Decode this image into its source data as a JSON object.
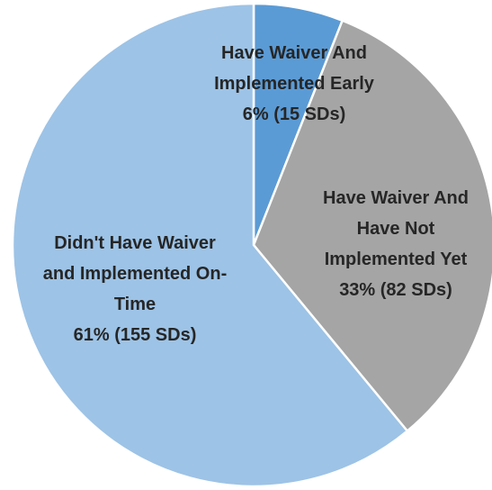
{
  "chart_data": {
    "type": "pie",
    "categories": [
      "Have Waiver And Implemented Early",
      "Have Waiver And Have Not Implemented Yet",
      "Didn't Have Waiver and Implemented On-Time"
    ],
    "values": [
      6,
      33,
      61
    ],
    "value_labels": [
      "6% (15 SDs)",
      "33% (82 SDs)",
      "61% (155 SDs)"
    ],
    "colors": [
      "#5b9bd5",
      "#a5a5a5",
      "#9dc3e6"
    ]
  }
}
